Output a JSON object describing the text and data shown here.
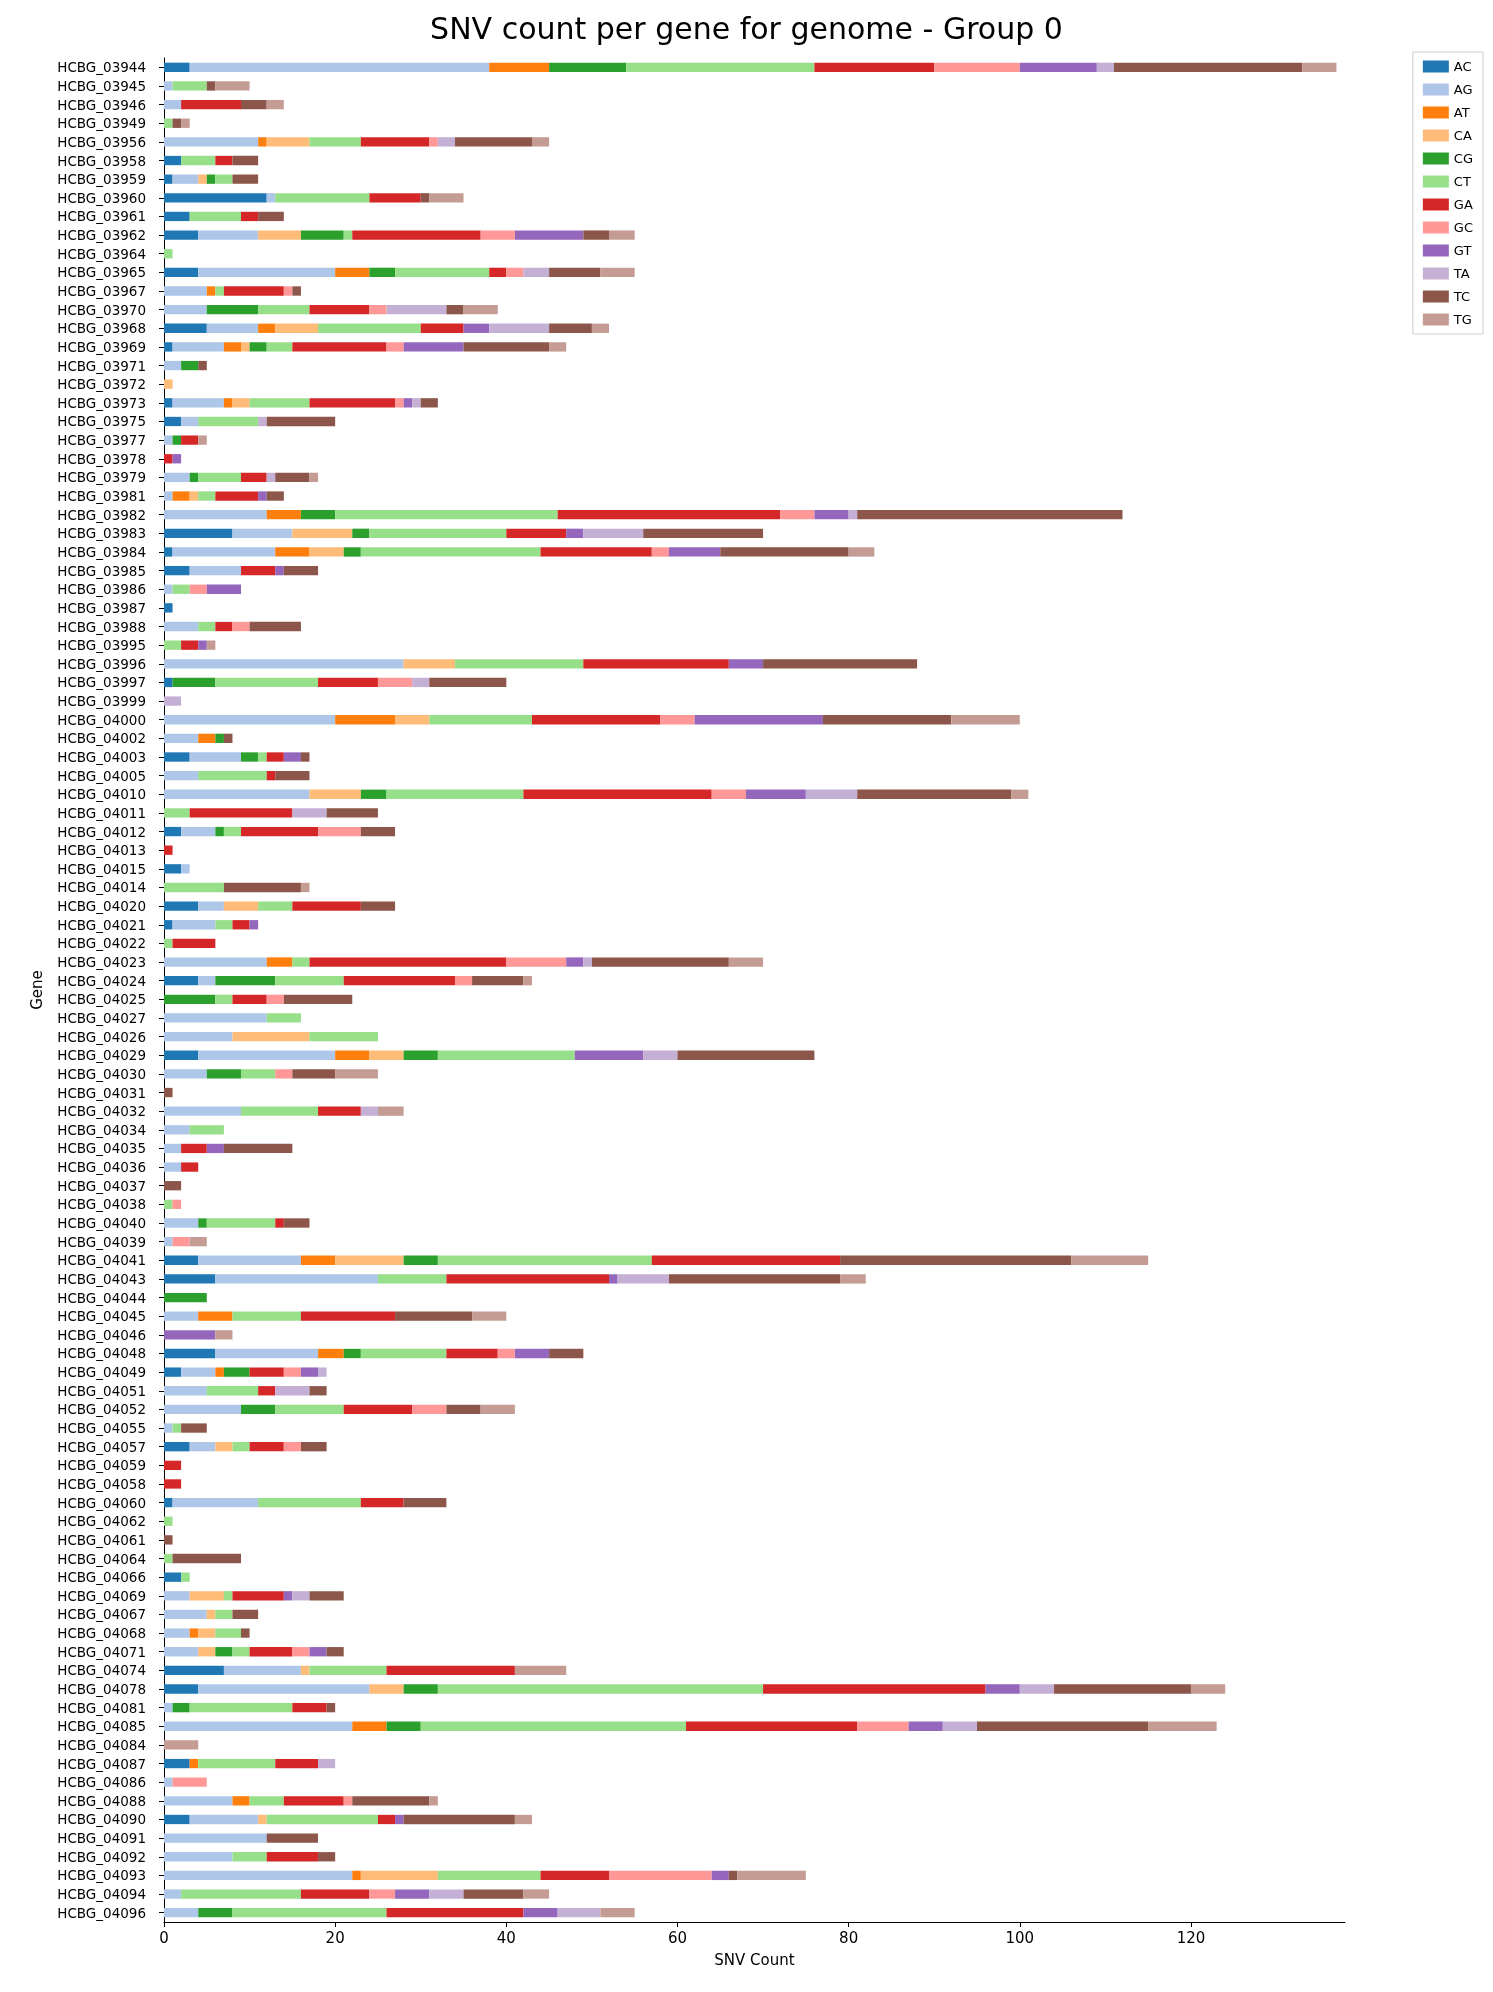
{
  "chart_data": {
    "type": "bar",
    "orientation": "horizontal",
    "stacked": true,
    "title": "SNV count per gene for genome - Group 0",
    "xlabel": "SNV Count",
    "ylabel": "Gene",
    "legend": "top right",
    "grid": false,
    "categories": [
      "HCBG_03944",
      "HCBG_03945",
      "HCBG_03946",
      "HCBG_03949",
      "HCBG_03956",
      "HCBG_03958",
      "HCBG_03959",
      "HCBG_03960",
      "HCBG_03961",
      "HCBG_03962",
      "HCBG_03964",
      "HCBG_03965",
      "HCBG_03967",
      "HCBG_03970",
      "HCBG_03968",
      "HCBG_03969",
      "HCBG_03971",
      "HCBG_03972",
      "HCBG_03973",
      "HCBG_03975",
      "HCBG_03977",
      "HCBG_03978",
      "HCBG_03979",
      "HCBG_03981",
      "HCBG_03982",
      "HCBG_03983",
      "HCBG_03984",
      "HCBG_03985",
      "HCBG_03986",
      "HCBG_03987",
      "HCBG_03988",
      "HCBG_03995",
      "HCBG_03996",
      "HCBG_03997",
      "HCBG_03999",
      "HCBG_04000",
      "HCBG_04002",
      "HCBG_04003",
      "HCBG_04005",
      "HCBG_04010",
      "HCBG_04011",
      "HCBG_04012",
      "HCBG_04013",
      "HCBG_04015",
      "HCBG_04014",
      "HCBG_04020",
      "HCBG_04021",
      "HCBG_04022",
      "HCBG_04023",
      "HCBG_04024",
      "HCBG_04025",
      "HCBG_04027",
      "HCBG_04026",
      "HCBG_04029",
      "HCBG_04030",
      "HCBG_04031",
      "HCBG_04032",
      "HCBG_04034",
      "HCBG_04035",
      "HCBG_04036",
      "HCBG_04037",
      "HCBG_04038",
      "HCBG_04040",
      "HCBG_04039",
      "HCBG_04041",
      "HCBG_04043",
      "HCBG_04044",
      "HCBG_04045",
      "HCBG_04046",
      "HCBG_04048",
      "HCBG_04049",
      "HCBG_04051",
      "HCBG_04052",
      "HCBG_04055",
      "HCBG_04057",
      "HCBG_04059",
      "HCBG_04058",
      "HCBG_04060",
      "HCBG_04062",
      "HCBG_04061",
      "HCBG_04064",
      "HCBG_04066",
      "HCBG_04069",
      "HCBG_04067",
      "HCBG_04068",
      "HCBG_04071",
      "HCBG_04074",
      "HCBG_04078",
      "HCBG_04081",
      "HCBG_04085",
      "HCBG_04084",
      "HCBG_04087",
      "HCBG_04086",
      "HCBG_04088",
      "HCBG_04090",
      "HCBG_04091",
      "HCBG_04092",
      "HCBG_04093",
      "HCBG_04094",
      "HCBG_04096"
    ],
    "xlim": [
      0,
      138
    ],
    "xticks": [
      0,
      20,
      40,
      60,
      80,
      100,
      120
    ],
    "series": [
      {
        "name": "AC",
        "color": "#1f77b4",
        "values": [
          3,
          0,
          0,
          0,
          0,
          2,
          1,
          12,
          3,
          4,
          0,
          4,
          0,
          0,
          5,
          1,
          0,
          0,
          1,
          2,
          0,
          0,
          0,
          0,
          0,
          8,
          1,
          3,
          0,
          1,
          0,
          0,
          0,
          1,
          0,
          0,
          0,
          3,
          0,
          0,
          0,
          2,
          0,
          2,
          0,
          4,
          1,
          0,
          0,
          4,
          0,
          0,
          0,
          4,
          0,
          0,
          0,
          0,
          0,
          0,
          0,
          0,
          0,
          0,
          4,
          6,
          0,
          0,
          0,
          6,
          2,
          0,
          0,
          0,
          3,
          0,
          0,
          1,
          0,
          0,
          0,
          2,
          0,
          0,
          0,
          0,
          7,
          4,
          0,
          0,
          0,
          3,
          0,
          0,
          3,
          0,
          0,
          0,
          0,
          0
        ]
      },
      {
        "name": "AG",
        "color": "#aec7e8",
        "values": [
          35,
          1,
          2,
          0,
          11,
          0,
          3,
          1,
          0,
          7,
          0,
          16,
          5,
          5,
          6,
          6,
          2,
          0,
          6,
          2,
          1,
          0,
          3,
          1,
          12,
          7,
          12,
          6,
          1,
          0,
          4,
          0,
          28,
          0,
          0,
          20,
          4,
          6,
          4,
          17,
          0,
          4,
          0,
          1,
          0,
          3,
          5,
          0,
          12,
          2,
          0,
          12,
          8,
          16,
          5,
          0,
          9,
          3,
          2,
          2,
          0,
          0,
          4,
          1,
          12,
          19,
          0,
          4,
          0,
          12,
          4,
          5,
          9,
          1,
          3,
          0,
          0,
          10,
          0,
          0,
          0,
          0,
          3,
          5,
          3,
          4,
          9,
          20,
          1,
          22,
          0,
          0,
          1,
          8,
          8,
          12,
          8,
          22,
          2,
          4
        ]
      },
      {
        "name": "AT",
        "color": "#ff7f0e",
        "values": [
          7,
          0,
          0,
          0,
          1,
          0,
          0,
          0,
          0,
          0,
          0,
          4,
          1,
          0,
          2,
          2,
          0,
          0,
          1,
          0,
          0,
          0,
          0,
          2,
          4,
          0,
          4,
          0,
          0,
          0,
          0,
          0,
          0,
          0,
          0,
          7,
          2,
          0,
          0,
          0,
          0,
          0,
          0,
          0,
          0,
          0,
          0,
          0,
          3,
          0,
          0,
          0,
          0,
          4,
          0,
          0,
          0,
          0,
          0,
          0,
          0,
          0,
          0,
          0,
          4,
          0,
          0,
          4,
          0,
          3,
          1,
          0,
          0,
          0,
          0,
          0,
          0,
          0,
          0,
          0,
          0,
          0,
          0,
          0,
          1,
          0,
          0,
          0,
          0,
          4,
          0,
          1,
          0,
          2,
          0,
          0,
          0,
          1,
          0,
          0
        ]
      },
      {
        "name": "CA",
        "color": "#ffbb78",
        "values": [
          0,
          0,
          0,
          0,
          5,
          0,
          1,
          0,
          0,
          5,
          0,
          0,
          0,
          0,
          5,
          1,
          0,
          1,
          2,
          0,
          0,
          0,
          0,
          1,
          0,
          7,
          4,
          0,
          0,
          0,
          0,
          0,
          6,
          0,
          0,
          4,
          0,
          0,
          0,
          6,
          0,
          0,
          0,
          0,
          0,
          4,
          0,
          0,
          0,
          0,
          0,
          0,
          9,
          4,
          0,
          0,
          0,
          0,
          0,
          0,
          0,
          0,
          0,
          0,
          8,
          0,
          0,
          0,
          0,
          0,
          0,
          0,
          0,
          0,
          2,
          0,
          0,
          0,
          0,
          0,
          0,
          0,
          4,
          1,
          2,
          2,
          1,
          4,
          0,
          0,
          0,
          0,
          0,
          0,
          1,
          0,
          0,
          9,
          0,
          0
        ]
      },
      {
        "name": "CG",
        "color": "#2ca02c",
        "values": [
          9,
          0,
          0,
          0,
          0,
          0,
          1,
          0,
          0,
          5,
          0,
          3,
          0,
          6,
          0,
          2,
          2,
          0,
          0,
          0,
          1,
          0,
          1,
          0,
          4,
          2,
          2,
          0,
          0,
          0,
          0,
          0,
          0,
          5,
          0,
          0,
          1,
          2,
          0,
          3,
          0,
          1,
          0,
          0,
          0,
          0,
          0,
          0,
          0,
          7,
          6,
          0,
          0,
          4,
          4,
          0,
          0,
          0,
          0,
          0,
          0,
          0,
          1,
          0,
          4,
          0,
          5,
          0,
          0,
          2,
          3,
          0,
          4,
          0,
          0,
          0,
          0,
          0,
          0,
          0,
          0,
          0,
          0,
          0,
          0,
          2,
          0,
          4,
          2,
          4,
          0,
          0,
          0,
          0,
          0,
          0,
          0,
          0,
          0,
          4
        ]
      },
      {
        "name": "CT",
        "color": "#98df8a",
        "values": [
          22,
          4,
          0,
          1,
          6,
          4,
          2,
          11,
          6,
          1,
          1,
          11,
          1,
          6,
          12,
          3,
          0,
          0,
          7,
          7,
          0,
          0,
          5,
          2,
          26,
          16,
          21,
          0,
          2,
          0,
          2,
          2,
          15,
          12,
          0,
          12,
          0,
          1,
          8,
          16,
          3,
          2,
          0,
          0,
          7,
          4,
          2,
          1,
          2,
          8,
          2,
          4,
          8,
          16,
          4,
          0,
          9,
          4,
          0,
          0,
          0,
          1,
          8,
          0,
          25,
          8,
          0,
          8,
          0,
          10,
          0,
          6,
          8,
          1,
          2,
          0,
          0,
          12,
          1,
          0,
          1,
          1,
          1,
          2,
          3,
          2,
          9,
          38,
          12,
          31,
          0,
          9,
          0,
          4,
          13,
          0,
          4,
          12,
          14,
          18
        ]
      },
      {
        "name": "GA",
        "color": "#d62728",
        "values": [
          14,
          0,
          7,
          0,
          8,
          2,
          0,
          6,
          2,
          15,
          0,
          2,
          7,
          7,
          5,
          11,
          0,
          0,
          10,
          0,
          2,
          1,
          3,
          5,
          26,
          7,
          13,
          4,
          0,
          0,
          2,
          2,
          17,
          7,
          0,
          15,
          0,
          2,
          1,
          22,
          12,
          9,
          1,
          0,
          0,
          8,
          2,
          5,
          23,
          13,
          4,
          0,
          0,
          0,
          0,
          0,
          5,
          0,
          3,
          2,
          0,
          0,
          1,
          0,
          22,
          19,
          0,
          11,
          0,
          6,
          4,
          2,
          8,
          0,
          4,
          2,
          2,
          5,
          0,
          0,
          0,
          0,
          6,
          0,
          0,
          5,
          15,
          26,
          4,
          20,
          0,
          5,
          0,
          7,
          2,
          0,
          6,
          8,
          8,
          16
        ]
      },
      {
        "name": "GC",
        "color": "#ff9896",
        "values": [
          10,
          0,
          0,
          0,
          1,
          0,
          0,
          0,
          0,
          4,
          0,
          2,
          1,
          2,
          0,
          2,
          0,
          0,
          1,
          0,
          0,
          0,
          0,
          0,
          4,
          0,
          2,
          0,
          2,
          0,
          2,
          0,
          0,
          4,
          0,
          4,
          0,
          0,
          0,
          4,
          0,
          5,
          0,
          0,
          0,
          0,
          0,
          0,
          7,
          2,
          2,
          0,
          0,
          0,
          2,
          0,
          0,
          0,
          0,
          0,
          0,
          1,
          0,
          2,
          0,
          0,
          0,
          0,
          0,
          2,
          2,
          0,
          4,
          0,
          2,
          0,
          0,
          0,
          0,
          0,
          0,
          0,
          0,
          0,
          0,
          2,
          0,
          0,
          0,
          6,
          0,
          0,
          4,
          1,
          0,
          0,
          0,
          12,
          3,
          0
        ]
      },
      {
        "name": "GT",
        "color": "#9467bd",
        "values": [
          9,
          0,
          0,
          0,
          0,
          0,
          0,
          0,
          0,
          8,
          0,
          0,
          0,
          0,
          3,
          7,
          0,
          0,
          1,
          0,
          0,
          1,
          0,
          1,
          4,
          2,
          6,
          1,
          4,
          0,
          0,
          1,
          4,
          0,
          0,
          15,
          0,
          2,
          0,
          7,
          0,
          0,
          0,
          0,
          0,
          0,
          1,
          0,
          2,
          0,
          0,
          0,
          0,
          8,
          0,
          0,
          0,
          0,
          2,
          0,
          0,
          0,
          0,
          0,
          0,
          1,
          0,
          0,
          6,
          4,
          2,
          0,
          0,
          0,
          0,
          0,
          0,
          0,
          0,
          0,
          0,
          0,
          1,
          0,
          0,
          2,
          0,
          4,
          0,
          4,
          0,
          0,
          0,
          0,
          1,
          0,
          0,
          2,
          4,
          4
        ]
      },
      {
        "name": "TA",
        "color": "#c5b0d5",
        "values": [
          2,
          0,
          0,
          0,
          2,
          0,
          0,
          0,
          0,
          0,
          0,
          3,
          0,
          7,
          7,
          0,
          0,
          0,
          1,
          1,
          0,
          0,
          1,
          0,
          1,
          7,
          0,
          0,
          0,
          0,
          0,
          0,
          0,
          2,
          2,
          0,
          0,
          0,
          0,
          6,
          4,
          0,
          0,
          0,
          0,
          0,
          0,
          0,
          1,
          0,
          0,
          0,
          0,
          4,
          0,
          0,
          2,
          0,
          0,
          0,
          0,
          0,
          0,
          0,
          0,
          6,
          0,
          0,
          0,
          0,
          1,
          4,
          0,
          0,
          0,
          0,
          0,
          0,
          0,
          0,
          0,
          0,
          2,
          0,
          0,
          0,
          0,
          4,
          0,
          4,
          0,
          2,
          0,
          0,
          0,
          0,
          0,
          0,
          4,
          5
        ]
      },
      {
        "name": "TC",
        "color": "#8c564b",
        "values": [
          22,
          1,
          3,
          1,
          9,
          3,
          3,
          1,
          3,
          3,
          0,
          6,
          1,
          2,
          5,
          10,
          1,
          0,
          2,
          8,
          0,
          0,
          4,
          2,
          31,
          14,
          15,
          4,
          0,
          0,
          6,
          0,
          18,
          9,
          0,
          15,
          1,
          1,
          4,
          18,
          6,
          4,
          0,
          0,
          9,
          4,
          0,
          0,
          16,
          6,
          8,
          0,
          0,
          16,
          5,
          1,
          0,
          0,
          8,
          0,
          2,
          0,
          3,
          0,
          27,
          20,
          0,
          9,
          0,
          4,
          0,
          2,
          4,
          3,
          3,
          0,
          0,
          5,
          0,
          1,
          8,
          0,
          4,
          3,
          1,
          2,
          0,
          16,
          1,
          20,
          0,
          0,
          0,
          9,
          13,
          6,
          2,
          1,
          7,
          0
        ]
      },
      {
        "name": "TG",
        "color": "#c49c94",
        "values": [
          4,
          4,
          2,
          1,
          2,
          0,
          0,
          4,
          0,
          3,
          0,
          4,
          0,
          4,
          2,
          2,
          0,
          0,
          0,
          0,
          1,
          0,
          1,
          0,
          0,
          0,
          3,
          0,
          0,
          0,
          0,
          1,
          0,
          0,
          0,
          8,
          0,
          0,
          0,
          2,
          0,
          0,
          0,
          0,
          1,
          0,
          0,
          0,
          4,
          1,
          0,
          0,
          0,
          0,
          5,
          0,
          3,
          0,
          0,
          0,
          0,
          0,
          0,
          2,
          9,
          3,
          0,
          4,
          2,
          0,
          0,
          0,
          4,
          0,
          0,
          0,
          0,
          0,
          0,
          0,
          0,
          0,
          0,
          0,
          0,
          0,
          6,
          4,
          0,
          8,
          4,
          0,
          0,
          1,
          2,
          0,
          0,
          8,
          3,
          4
        ]
      }
    ]
  }
}
